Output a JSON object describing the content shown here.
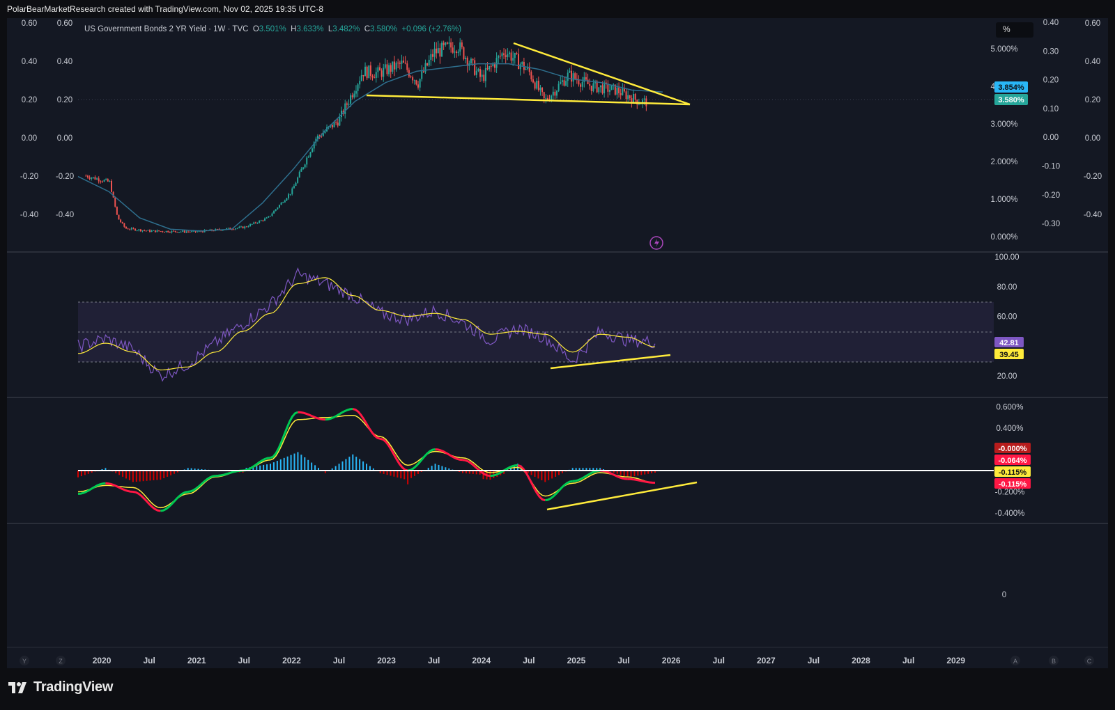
{
  "header": {
    "attribution": "PolarBearMarketResearch created with TradingView.com, Nov 02, 2025 19:35 UTC-8"
  },
  "legend": {
    "symbol": "US Government Bonds 2 YR Yield · 1W · TVC",
    "o_label": "O",
    "o_value": "3.501%",
    "h_label": "H",
    "h_value": "3.633%",
    "l_label": "L",
    "l_value": "3.482%",
    "c_label": "C",
    "c_value": "3.580%",
    "change": "+0.096 (+2.76%)"
  },
  "unit_button": "%",
  "brand": "TradingView",
  "colors": {
    "background": "#141823",
    "bull": "#26a69a",
    "bear": "#ef5350",
    "trendline": "#ffeb3b",
    "rsi": "#7e57c2",
    "rsi_ma": "#ffeb3b",
    "macd_up": "#00c853",
    "macd_down": "#ff1744",
    "histogram_pos": "#29b6f6",
    "histogram_neg": "#d50000"
  },
  "chart_data": [
    {
      "type": "line",
      "name": "price",
      "x": [
        "2019-11",
        "2020-02",
        "2020-03",
        "2020-04",
        "2020-07",
        "2021-01",
        "2021-07",
        "2021-10",
        "2022-01",
        "2022-04",
        "2022-07",
        "2022-10",
        "2022-12",
        "2023-03",
        "2023-05",
        "2023-07",
        "2023-10",
        "2024-01",
        "2024-04",
        "2024-07",
        "2024-09",
        "2024-12",
        "2025-03",
        "2025-06",
        "2025-09",
        "2025-10"
      ],
      "series": [
        {
          "values": [
            1.62,
            1.45,
            0.5,
            0.22,
            0.15,
            0.13,
            0.25,
            0.5,
            1.2,
            2.6,
            3.1,
            4.4,
            4.35,
            4.6,
            4.1,
            4.9,
            5.1,
            4.2,
            4.95,
            4.4,
            3.6,
            4.3,
            4.0,
            3.9,
            3.6,
            3.58
          ]
        }
      ],
      "moving_average": [
        1.6,
        1.2,
        0.5,
        0.2,
        0.15,
        0.2,
        0.9,
        1.8,
        2.8,
        3.6,
        4.1,
        4.4,
        4.5,
        4.6,
        4.6,
        4.45,
        4.2,
        4.1,
        3.9,
        3.85
      ],
      "trendlines": [
        "descending resistance",
        "horizontal support"
      ],
      "price_labels": [
        "3.854%",
        "3.580%"
      ],
      "right_axis": [
        "5.000%",
        "4.000%",
        "3.000%",
        "2.000%",
        "1.000%",
        "0.000%"
      ],
      "inner_axis": [
        "0.40",
        "0.30",
        "0.20",
        "0.10",
        "0.00",
        "-0.10",
        "-0.20",
        "-0.30"
      ],
      "outer_axis": [
        "0.60",
        "0.40",
        "0.20",
        "0.00",
        "-0.20",
        "-0.40"
      ]
    },
    {
      "type": "line",
      "name": "RSI",
      "series": [
        {
          "values": [
            40,
            45,
            38,
            20,
            28,
            42,
            55,
            68,
            88,
            82,
            74,
            62,
            58,
            64,
            56,
            44,
            52,
            46,
            30,
            50,
            44,
            42.81
          ]
        },
        {
          "values": [
            35,
            42,
            36,
            24,
            26,
            36,
            50,
            62,
            82,
            86,
            74,
            64,
            60,
            62,
            58,
            48,
            50,
            48,
            36,
            48,
            46,
            39.45
          ]
        }
      ],
      "ylim": [
        20,
        100
      ],
      "band": [
        30,
        70
      ],
      "right_axis": [
        "100.00",
        "80.00",
        "60.00",
        "20.00"
      ],
      "value_labels": [
        "42.81",
        "39.45"
      ]
    },
    {
      "type": "line",
      "name": "MACD",
      "series": [
        {
          "values": [
            -0.22,
            -0.12,
            -0.2,
            -0.38,
            -0.2,
            -0.05,
            0.0,
            0.12,
            0.55,
            0.48,
            0.58,
            0.3,
            0.0,
            0.2,
            0.1,
            -0.05,
            0.05,
            -0.28,
            -0.1,
            0.0,
            -0.08,
            -0.115
          ]
        },
        {
          "values": [
            -0.2,
            -0.14,
            -0.16,
            -0.35,
            -0.22,
            -0.06,
            0.0,
            0.1,
            0.48,
            0.5,
            0.52,
            0.32,
            0.05,
            0.18,
            0.12,
            -0.02,
            0.03,
            -0.24,
            -0.12,
            -0.02,
            -0.06,
            -0.115
          ]
        }
      ],
      "ylim": [
        -0.45,
        0.65
      ],
      "right_axis": [
        "0.600%",
        "0.400%",
        "-0.200%",
        "-0.400%"
      ],
      "value_labels": [
        "-0.000%",
        "-0.064%",
        "-0.115%",
        "-0.115%"
      ]
    }
  ],
  "bottom_axis": {
    "labels": [
      "2020",
      "Jul",
      "2021",
      "Jul",
      "2022",
      "Jul",
      "2023",
      "Jul",
      "2024",
      "Jul",
      "2025",
      "Jul",
      "2026",
      "Jul",
      "2027",
      "Jul",
      "2028",
      "Jul",
      "2029"
    ],
    "left_buttons": [
      "Y",
      "Z"
    ],
    "right_buttons": [
      "A",
      "B",
      "C"
    ],
    "empty_pane_value": "0"
  }
}
